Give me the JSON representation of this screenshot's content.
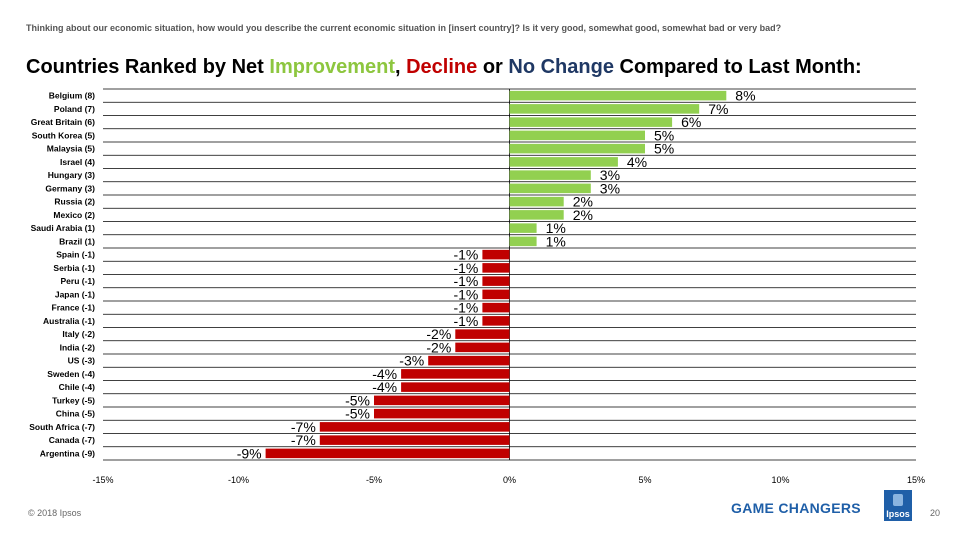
{
  "header": {
    "question": "Thinking about our economic situation, how would you describe the current economic situation in [insert country]?  Is it very good, somewhat good, somewhat bad or very bad?",
    "title_part1": "Countries Ranked by Net ",
    "title_improvement": "Improvement",
    "title_sep1": ", ",
    "title_decline": "Decline",
    "title_sep2": " or ",
    "title_nochange": "No Change",
    "title_part2": " Compared to Last Month:"
  },
  "colors": {
    "positive": "#92d050",
    "negative": "#c00000",
    "improvement_text": "#8dc63f",
    "decline_text": "#c00000",
    "nochange_text": "#1f3864",
    "brand": "#1f5fa8"
  },
  "chart_data": {
    "type": "bar",
    "orientation": "horizontal",
    "categories": [
      "Belgium (8)",
      "Poland (7)",
      "Great Britain (6)",
      "South Korea (5)",
      "Malaysia (5)",
      "Israel (4)",
      "Hungary (3)",
      "Germany (3)",
      "Russia (2)",
      "Mexico (2)",
      "Saudi Arabia (1)",
      "Brazil (1)",
      "Spain (-1)",
      "Serbia (-1)",
      "Peru (-1)",
      "Japan (-1)",
      "France (-1)",
      "Australia (-1)",
      "Italy (-2)",
      "India (-2)",
      "US (-3)",
      "Sweden (-4)",
      "Chile (-4)",
      "Turkey (-5)",
      "China (-5)",
      "South Africa (-7)",
      "Canada (-7)",
      "Argentina (-9)"
    ],
    "values": [
      8,
      7,
      6,
      5,
      5,
      4,
      3,
      3,
      2,
      2,
      1,
      1,
      -1,
      -1,
      -1,
      -1,
      -1,
      -1,
      -2,
      -2,
      -3,
      -4,
      -4,
      -5,
      -5,
      -7,
      -7,
      -9
    ],
    "data_labels": [
      "8%",
      "7%",
      "6%",
      "5%",
      "5%",
      "4%",
      "3%",
      "3%",
      "2%",
      "2%",
      "1%",
      "1%",
      "-1%",
      "-1%",
      "-1%",
      "-1%",
      "-1%",
      "-1%",
      "-2%",
      "-2%",
      "-3%",
      "-4%",
      "-4%",
      "-5%",
      "-5%",
      "-7%",
      "-7%",
      "-9%"
    ],
    "xlim": [
      -15,
      15
    ],
    "xticks": [
      -15,
      -10,
      -5,
      0,
      5,
      10,
      15
    ],
    "xtick_labels": [
      "-15%",
      "-10%",
      "-5%",
      "0%",
      "5%",
      "10%",
      "15%"
    ],
    "grid": "horizontal",
    "title": "Countries Ranked by Net Improvement, Decline or No Change Compared to Last Month:",
    "xlabel": "",
    "ylabel": ""
  },
  "footer": {
    "copyright": "© 2018 Ipsos",
    "tagline": "GAME CHANGERS",
    "logo_text": "Ipsos",
    "page_number": "20"
  }
}
